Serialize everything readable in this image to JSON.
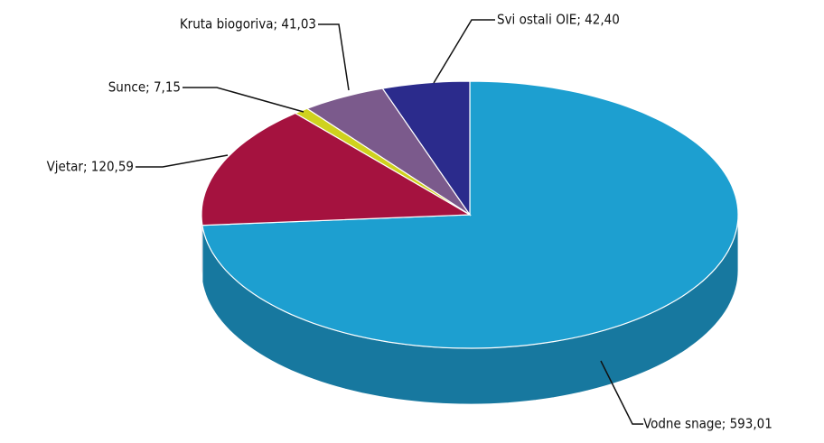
{
  "chart_data": {
    "type": "pie3d",
    "values": [
      593.01,
      120.59,
      7.15,
      41.03,
      42.4
    ],
    "value_labels": [
      "Vodne snage; 593,01",
      "Vjetar; 120,59",
      "Sunce; 7,15",
      "Kruta biogoriva; 41,03",
      "Svi ostali OIE; 42,40"
    ],
    "colors": [
      "#1d9fd0",
      "#a5123f",
      "#cfd21e",
      "#7b5a8c",
      "#2b2b8c"
    ],
    "side_colors": [
      "#17789f",
      "#7a0d2f",
      "#9a9c15",
      "#5a4068",
      "#1e1e66"
    ]
  }
}
